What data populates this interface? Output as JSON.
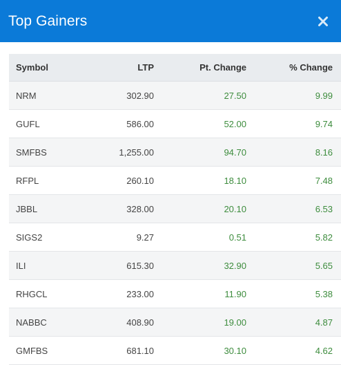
{
  "header": {
    "title": "Top Gainers",
    "close_icon": "close-icon"
  },
  "colors": {
    "header_bg": "#0b7ad8",
    "positive": "#3d8c3d"
  },
  "table": {
    "columns": [
      "Symbol",
      "LTP",
      "Pt. Change",
      "% Change"
    ],
    "rows": [
      {
        "symbol": "NRM",
        "ltp": "302.90",
        "pt_change": "27.50",
        "pct_change": "9.99"
      },
      {
        "symbol": "GUFL",
        "ltp": "586.00",
        "pt_change": "52.00",
        "pct_change": "9.74"
      },
      {
        "symbol": "SMFBS",
        "ltp": "1,255.00",
        "pt_change": "94.70",
        "pct_change": "8.16"
      },
      {
        "symbol": "RFPL",
        "ltp": "260.10",
        "pt_change": "18.10",
        "pct_change": "7.48"
      },
      {
        "symbol": "JBBL",
        "ltp": "328.00",
        "pt_change": "20.10",
        "pct_change": "6.53"
      },
      {
        "symbol": "SIGS2",
        "ltp": "9.27",
        "pt_change": "0.51",
        "pct_change": "5.82"
      },
      {
        "symbol": "ILI",
        "ltp": "615.30",
        "pt_change": "32.90",
        "pct_change": "5.65"
      },
      {
        "symbol": "RHGCL",
        "ltp": "233.00",
        "pt_change": "11.90",
        "pct_change": "5.38"
      },
      {
        "symbol": "NABBC",
        "ltp": "408.90",
        "pt_change": "19.00",
        "pct_change": "4.87"
      },
      {
        "symbol": "GMFBS",
        "ltp": "681.10",
        "pt_change": "30.10",
        "pct_change": "4.62"
      }
    ]
  }
}
